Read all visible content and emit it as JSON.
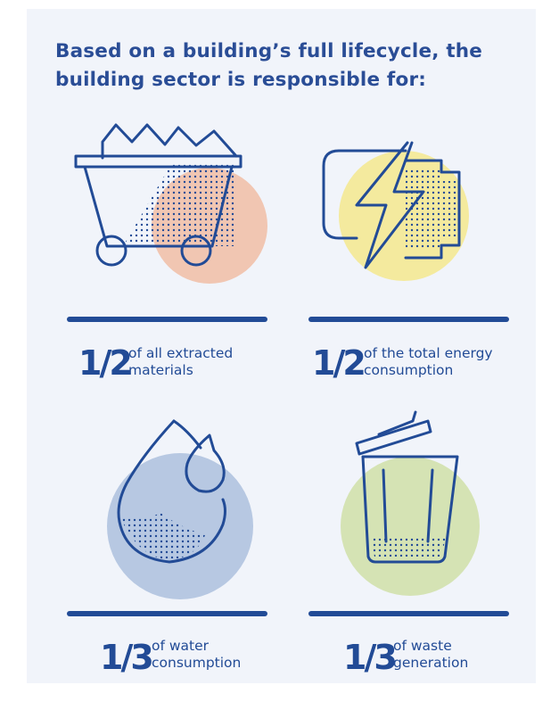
{
  "title": "Based on a building’s full lifecycle, the building sector is responsible for:",
  "colors": {
    "brand_blue": "#224b96",
    "background": "#f1f4fa",
    "materials_circle": "#f1c6b2",
    "energy_circle": "#f4ea9e",
    "water_circle": "#b7c8e2",
    "waste_circle": "#d5e3b4"
  },
  "stats": [
    {
      "icon": "mine-cart-icon",
      "fraction": "1/2",
      "line1": "of all extracted",
      "line2": "materials"
    },
    {
      "icon": "lightning-battery-icon",
      "fraction": "1/2",
      "line1": "of the total energy",
      "line2": "consumption"
    },
    {
      "icon": "water-drops-icon",
      "fraction": "1/3",
      "line1": "of water",
      "line2": "consumption"
    },
    {
      "icon": "trash-bin-icon",
      "fraction": "1/3",
      "line1": "of waste",
      "line2": "generation"
    }
  ]
}
